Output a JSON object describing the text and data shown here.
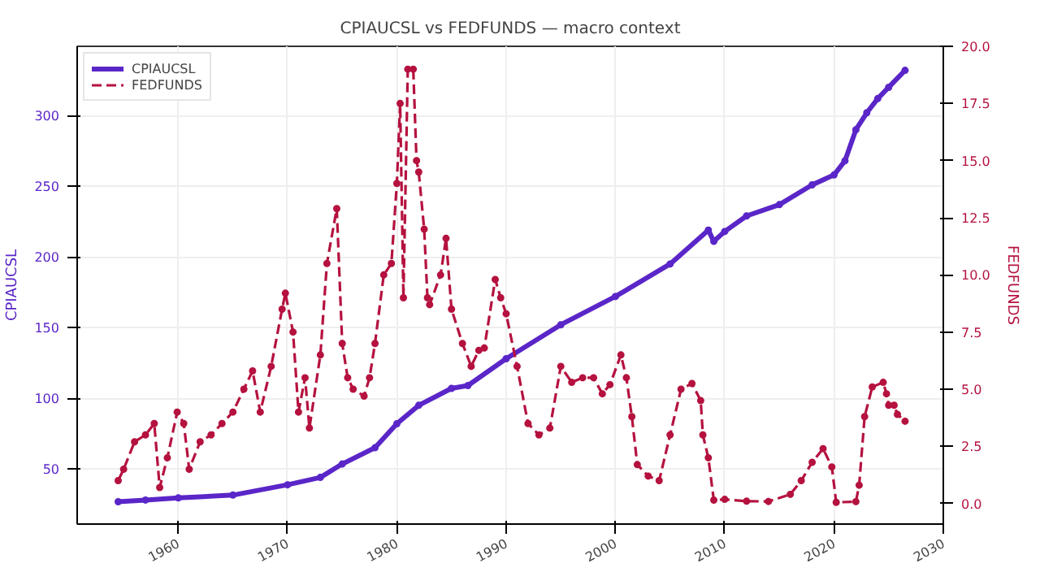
{
  "chart_data": {
    "type": "line",
    "title": "CPIAUCSL vs FEDFUNDS — macro context",
    "ylabel": "CPIAUCSL",
    "y2label": "FEDFUNDS",
    "xlim": [
      1950.75,
      2030
    ],
    "xticks": [
      1960,
      1970,
      1980,
      1990,
      2000,
      2010,
      2020,
      2030
    ],
    "ylim": [
      11,
      349
    ],
    "yticks": [
      50,
      100,
      150,
      200,
      250,
      300
    ],
    "y2lim": [
      -0.9,
      20
    ],
    "y2ticks": [
      {
        "value": 0,
        "label": "0.0"
      },
      {
        "value": 2.5,
        "label": "2.5"
      },
      {
        "value": 5,
        "label": "5.0"
      },
      {
        "value": 7.5,
        "label": "7.5"
      },
      {
        "value": 10,
        "label": "10.0"
      },
      {
        "value": 12.5,
        "label": "12.5"
      },
      {
        "value": 15,
        "label": "15.0"
      },
      {
        "value": 17.5,
        "label": "17.5"
      },
      {
        "value": 20,
        "label": "20.0"
      }
    ],
    "grid": true,
    "legend": "top left",
    "marker": "circle",
    "series": [
      {
        "name": "CPIAUCSL",
        "color": "#5a26c8",
        "line_style": "solid",
        "x": [
          1954.5,
          1957,
          1960,
          1965,
          1970,
          1973,
          1975,
          1978,
          1980,
          1982,
          1985,
          1986.5,
          1990,
          1995,
          2000,
          2005,
          2008.5,
          2009,
          2010,
          2012,
          2015,
          2018,
          2020,
          2021,
          2022,
          2023,
          2024,
          2025,
          2026.5
        ],
        "values": [
          26.8,
          28,
          29.5,
          31.5,
          38.8,
          44,
          53.5,
          65,
          82,
          95,
          107,
          109,
          128,
          152,
          172,
          195,
          219,
          211,
          218,
          229,
          237,
          251,
          258,
          268,
          290,
          302,
          312,
          320,
          332
        ]
      },
      {
        "name": "FEDFUNDS",
        "color": "#b5123f",
        "line_style": "dashed",
        "axis": "y2",
        "x": [
          1954.5,
          1955,
          1956,
          1957,
          1957.8,
          1958.3,
          1959,
          1959.9,
          1960.5,
          1961,
          1962,
          1963,
          1964,
          1965,
          1966,
          1966.8,
          1967.5,
          1968.5,
          1969.5,
          1969.8,
          1970.5,
          1971,
          1971.6,
          1972,
          1973,
          1973.6,
          1974.5,
          1975,
          1975.5,
          1976,
          1977,
          1977.5,
          1978,
          1978.8,
          1979.5,
          1980,
          1980.3,
          1980.6,
          1981,
          1981.5,
          1981.8,
          1982,
          1982.5,
          1982.8,
          1983,
          1984,
          1984.5,
          1985,
          1986,
          1986.8,
          1987.5,
          1988,
          1989,
          1989.5,
          1990,
          1991,
          1992,
          1993,
          1994,
          1995,
          1996,
          1997,
          1998,
          1998.8,
          1999.5,
          2000.5,
          2001,
          2001.5,
          2002,
          2003,
          2004,
          2005,
          2006,
          2007,
          2007.8,
          2008,
          2008.5,
          2009,
          2010,
          2012,
          2014,
          2016,
          2017,
          2018,
          2019,
          2019.8,
          2020.2,
          2022,
          2022.3,
          2022.8,
          2023.5,
          2024.5,
          2024.8,
          2025,
          2025.5,
          2025.8,
          2026.5
        ],
        "values": [
          1.0,
          1.5,
          2.7,
          3.0,
          3.5,
          0.7,
          2.0,
          4.0,
          3.5,
          1.5,
          2.7,
          3.0,
          3.5,
          4.0,
          5.0,
          5.8,
          4.0,
          6.0,
          8.5,
          9.2,
          7.5,
          4.0,
          5.5,
          3.3,
          6.5,
          10.5,
          12.9,
          7.0,
          5.5,
          5.0,
          4.7,
          5.5,
          7.0,
          10.0,
          10.5,
          14.0,
          17.5,
          9.0,
          19.0,
          19.0,
          15.0,
          14.5,
          12.0,
          9.0,
          8.7,
          10.0,
          11.6,
          8.5,
          7.0,
          6.0,
          6.7,
          6.8,
          9.8,
          9.0,
          8.3,
          6.0,
          3.5,
          3.0,
          3.3,
          6.0,
          5.3,
          5.5,
          5.5,
          4.8,
          5.2,
          6.5,
          5.5,
          3.8,
          1.7,
          1.2,
          1.0,
          3.0,
          5.0,
          5.25,
          4.5,
          3.0,
          2.0,
          0.15,
          0.18,
          0.1,
          0.09,
          0.4,
          1.0,
          1.8,
          2.4,
          1.6,
          0.05,
          0.08,
          0.8,
          3.8,
          5.1,
          5.3,
          4.8,
          4.3,
          4.3,
          3.9,
          3.6
        ]
      }
    ]
  }
}
